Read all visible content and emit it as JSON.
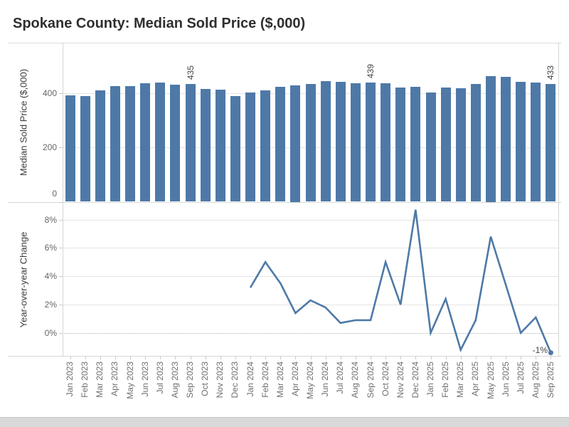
{
  "title": "Spokane County: Median Sold Price ($,000)",
  "colors": {
    "bar": "#4e79a7",
    "line": "#4e79a7",
    "grid": "#e4e4e4",
    "axis_text": "#666666",
    "title_text": "#2f2f2f"
  },
  "chart_data": [
    {
      "type": "bar",
      "title": "Spokane County: Median Sold Price ($,000)",
      "xlabel": "",
      "ylabel": "Median Sold Price ($,000)",
      "categories": [
        "Jan 2023",
        "Feb 2023",
        "Mar 2023",
        "Apr 2023",
        "May 2023",
        "Jun 2023",
        "Jul 2023",
        "Aug 2023",
        "Sep 2023",
        "Oct 2023",
        "Nov 2023",
        "Dec 2023",
        "Jan 2024",
        "Feb 2024",
        "Mar 2024",
        "Apr 2024",
        "May 2024",
        "Jun 2024",
        "Jul 2024",
        "Aug 2024",
        "Sep 2024",
        "Oct 2024",
        "Nov 2024",
        "Dec 2024",
        "Jan 2025",
        "Feb 2025",
        "Mar 2025",
        "Apr 2025",
        "May 2025",
        "Jun 2025",
        "Jul 2025",
        "Aug 2025",
        "Sep 2025"
      ],
      "values": [
        391,
        390,
        410,
        425,
        425,
        436,
        438,
        432,
        435,
        416,
        412,
        390,
        403,
        410,
        424,
        430,
        435,
        444,
        441,
        436,
        439,
        437,
        420,
        424,
        403,
        420,
        419,
        433,
        464,
        459,
        441,
        440,
        433
      ],
      "bar_labels": [
        {
          "month": "Sep 2023",
          "label": "435"
        },
        {
          "month": "Sep 2024",
          "label": "439"
        },
        {
          "month": "Sep 2025",
          "label": "433"
        }
      ],
      "yticks": [
        0,
        200,
        400
      ],
      "ytick_labels": [
        "0",
        "200",
        "400"
      ],
      "ylim": [
        0,
        586
      ],
      "grid": true,
      "legend": "none"
    },
    {
      "type": "line",
      "title": "",
      "xlabel": "",
      "ylabel": "Year-over-year Change",
      "x": [
        "Jan 2024",
        "Feb 2024",
        "Mar 2024",
        "Apr 2024",
        "May 2024",
        "Jun 2024",
        "Jul 2024",
        "Aug 2024",
        "Sep 2024",
        "Oct 2024",
        "Nov 2024",
        "Dec 2024",
        "Jan 2025",
        "Feb 2025",
        "Mar 2025",
        "Apr 2025",
        "May 2025",
        "Jun 2025",
        "Jul 2025",
        "Aug 2025",
        "Sep 2025"
      ],
      "values": [
        3.2,
        5.0,
        3.5,
        1.4,
        2.3,
        1.8,
        0.7,
        0.9,
        0.9,
        5.0,
        2.0,
        8.7,
        0.0,
        2.4,
        -1.2,
        0.9,
        6.8,
        3.4,
        0.0,
        1.1,
        -1.4
      ],
      "yticks": [
        0,
        2,
        4,
        6,
        8
      ],
      "ytick_labels": [
        "0%",
        "2%",
        "4%",
        "6%",
        "8%"
      ],
      "ylim": [
        -1.62,
        9.16
      ],
      "grid": true,
      "zero_line": "dotted",
      "legend": "none",
      "end_label": "-1%",
      "end_marker": true
    }
  ]
}
